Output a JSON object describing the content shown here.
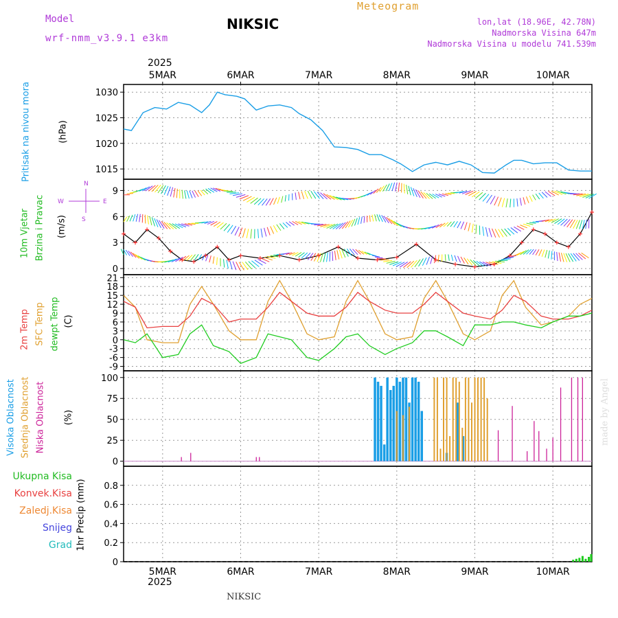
{
  "header": {
    "model_label": "Model",
    "model_name": "wrf-nmm_v3.9.1 e3km",
    "station": "NIKSIC",
    "meteogram": "Meteogram",
    "lonlat": "lon,lat (18.96E, 42.78N)",
    "altitude": "Nadmorska Visina 647m",
    "model_altitude": "Nadmorska Visina u modelu 741.539m",
    "footer_station": "NIKSIC",
    "credit": "made by Angel"
  },
  "colors": {
    "pressure": "#1a9ee6",
    "temp2m": "#e84040",
    "sfc": "#e0a030",
    "dewpt": "#1fcc1f",
    "high_cloud": "#1a9ee6",
    "mid_cloud": "#e0a030",
    "low_cloud": "#cc2299",
    "wind_black": "#000000",
    "grid": "#999999",
    "purple_text": "#b03ad8",
    "green_label": "#22bb22",
    "red_label": "#e84040",
    "orange_label": "#ee8833",
    "blue_label": "#4444dd",
    "cyan_label": "#22bbbb"
  },
  "axis": {
    "year": "2025",
    "dates": [
      "5MAR",
      "6MAR",
      "7MAR",
      "8MAR",
      "9MAR",
      "10MAR"
    ],
    "day_units": [
      0.5,
      1.5,
      2.5,
      3.5,
      4.5,
      5.5
    ],
    "range_days": [
      0,
      6
    ]
  },
  "chart_data": [
    {
      "type": "line",
      "id": "pressure",
      "ylabel_line1": "Pritisak na nivou mora",
      "unit": "(hPa)",
      "yticks": [
        1015,
        1020,
        1025,
        1030
      ],
      "ylim": [
        1013,
        1031.5
      ],
      "series": [
        {
          "name": "MSLP",
          "x": [
            0,
            0.1,
            0.25,
            0.4,
            0.55,
            0.7,
            0.85,
            1.0,
            1.1,
            1.2,
            1.3,
            1.45,
            1.55,
            1.7,
            1.85,
            2.0,
            2.15,
            2.25,
            2.4,
            2.55,
            2.7,
            2.85,
            3.0,
            3.15,
            3.3,
            3.45,
            3.55,
            3.7,
            3.85,
            4.0,
            4.15,
            4.3,
            4.45,
            4.6,
            4.75,
            4.9,
            5.0,
            5.1,
            5.25,
            5.4,
            5.55,
            5.7,
            5.85,
            6.0
          ],
          "values": [
            1022.8,
            1022.5,
            1026,
            1027,
            1026.7,
            1028,
            1027.5,
            1026,
            1027.5,
            1030,
            1029.5,
            1029.2,
            1028.7,
            1026.5,
            1027.3,
            1027.5,
            1027,
            1025.8,
            1024.6,
            1022.5,
            1019.3,
            1019.2,
            1018.8,
            1017.8,
            1017.8,
            1016.8,
            1016,
            1014.5,
            1015.8,
            1016.3,
            1015.8,
            1016.5,
            1015.8,
            1014.3,
            1014.2,
            1015.8,
            1016.7,
            1016.7,
            1016,
            1016.2,
            1016.2,
            1014.8,
            1014.6,
            1014.6
          ]
        }
      ]
    },
    {
      "type": "line",
      "id": "wind",
      "ylabel_line1": "10m Vjetar",
      "ylabel_line2": "Brzina i Pravac",
      "unit": "(m/s)",
      "compass_n": "N",
      "compass_s": "S",
      "compass_w": "W",
      "compass_e": "E",
      "yticks": [
        0,
        3,
        6,
        9
      ],
      "ylim": [
        -0.7,
        10.3
      ],
      "series": [
        {
          "name": "speed",
          "x": [
            0,
            0.15,
            0.3,
            0.45,
            0.6,
            0.75,
            0.9,
            1.05,
            1.2,
            1.35,
            1.5,
            1.75,
            2.0,
            2.25,
            2.5,
            2.75,
            3.0,
            3.25,
            3.5,
            3.75,
            4.0,
            4.25,
            4.5,
            4.75,
            4.95,
            5.1,
            5.25,
            5.4,
            5.55,
            5.7,
            5.85,
            6.0
          ],
          "values": [
            4,
            3,
            4.5,
            3.5,
            2,
            1,
            0.8,
            1.5,
            2.5,
            1,
            1.5,
            1.2,
            1.5,
            1,
            1.5,
            2.5,
            1.2,
            1,
            1.3,
            2.8,
            1,
            0.5,
            0.2,
            0.5,
            1.5,
            3,
            4.5,
            4,
            3,
            2.5,
            4,
            6.5
          ]
        },
        {
          "name": "sample",
          "x": [
            0.2,
            0.6,
            1.0
          ],
          "values": [
            3.6,
            2.5,
            1.5
          ]
        }
      ]
    },
    {
      "type": "line",
      "id": "temperature",
      "ylabel_line1": "2m Temp",
      "ylabel_line2": "SFC Temp",
      "ylabel_line3": "dewpt Temp",
      "unit": "(C)",
      "yticks": [
        -9,
        -6,
        -3,
        0,
        3,
        6,
        9,
        12,
        15,
        18,
        21
      ],
      "ylim": [
        -10.5,
        22
      ],
      "series": [
        {
          "name": "2m Temp",
          "x": [
            0,
            0.15,
            0.3,
            0.5,
            0.7,
            0.85,
            1.0,
            1.15,
            1.35,
            1.5,
            1.7,
            1.85,
            2.0,
            2.15,
            2.35,
            2.5,
            2.7,
            2.85,
            3.0,
            3.15,
            3.35,
            3.5,
            3.7,
            3.85,
            4.0,
            4.15,
            4.35,
            4.5,
            4.7,
            4.85,
            5.0,
            5.15,
            5.35,
            5.5,
            5.7,
            5.85,
            6.0
          ],
          "values": [
            13,
            11,
            4,
            4.5,
            4.5,
            8,
            14,
            12,
            6,
            7,
            7,
            11,
            16,
            13,
            9,
            8,
            8,
            11,
            16,
            13,
            10,
            9,
            9,
            12,
            16,
            13,
            9,
            8,
            7,
            10,
            15,
            13,
            8,
            7,
            7,
            8,
            10
          ]
        },
        {
          "name": "SFC Temp",
          "x": [
            0,
            0.15,
            0.3,
            0.5,
            0.7,
            0.85,
            1.0,
            1.15,
            1.35,
            1.5,
            1.7,
            1.85,
            2.0,
            2.15,
            2.35,
            2.5,
            2.7,
            2.85,
            3.0,
            3.15,
            3.35,
            3.5,
            3.7,
            3.85,
            4.0,
            4.15,
            4.35,
            4.5,
            4.7,
            4.85,
            5.0,
            5.15,
            5.35,
            5.5,
            5.7,
            5.85,
            6.0
          ],
          "values": [
            15,
            11,
            0,
            -1,
            -1,
            12,
            18,
            12,
            3,
            0,
            0,
            13,
            20,
            13,
            2,
            0,
            1,
            13,
            20,
            13,
            2,
            0,
            1,
            14,
            20,
            13,
            2,
            0,
            3,
            15,
            20,
            11,
            5,
            6,
            8,
            12,
            14
          ]
        },
        {
          "name": "dewpt Temp",
          "x": [
            0,
            0.15,
            0.3,
            0.5,
            0.7,
            0.85,
            1.0,
            1.15,
            1.35,
            1.5,
            1.7,
            1.85,
            2.0,
            2.15,
            2.35,
            2.5,
            2.7,
            2.85,
            3.0,
            3.15,
            3.35,
            3.5,
            3.7,
            3.85,
            4.0,
            4.15,
            4.35,
            4.5,
            4.7,
            4.85,
            5.0,
            5.15,
            5.35,
            5.5,
            5.7,
            5.85,
            6.0
          ],
          "values": [
            0,
            -1,
            2,
            -6,
            -5,
            2,
            5,
            -2,
            -4,
            -8,
            -6,
            2,
            1,
            0,
            -6,
            -7,
            -3,
            1,
            2,
            -2,
            -5,
            -3,
            -1,
            3,
            3,
            1,
            -2,
            5,
            5,
            6,
            6,
            5,
            4,
            6,
            8,
            8,
            9
          ]
        }
      ]
    },
    {
      "type": "bar",
      "id": "clouds",
      "ylabel_line1": "Visoka Oblacnost",
      "ylabel_line2": "Srednja Oblacnost",
      "ylabel_line3": "Niska Oblacnost",
      "unit": "(%)",
      "yticks": [
        0,
        25,
        50,
        75,
        100
      ],
      "ylim": [
        -6,
        108
      ],
      "series": [
        {
          "name": "Visoka Oblacnost",
          "x": [
            3.22,
            3.26,
            3.3,
            3.34,
            3.38,
            3.42,
            3.46,
            3.5,
            3.54,
            3.58,
            3.62,
            3.66,
            3.7,
            3.74,
            3.78,
            3.82,
            4.14,
            4.28,
            4.35
          ],
          "values": [
            100,
            95,
            90,
            20,
            100,
            85,
            90,
            100,
            95,
            100,
            100,
            70,
            100,
            100,
            95,
            60,
            10,
            70,
            30
          ]
        },
        {
          "name": "Srednja Oblacnost",
          "x": [
            3.5,
            3.58,
            3.66,
            3.98,
            4.02,
            4.06,
            4.1,
            4.14,
            4.18,
            4.22,
            4.26,
            4.3,
            4.34,
            4.38,
            4.42,
            4.46,
            4.5,
            4.54,
            4.58,
            4.62,
            4.66
          ],
          "values": [
            60,
            55,
            65,
            100,
            100,
            15,
            100,
            100,
            30,
            100,
            100,
            95,
            40,
            100,
            100,
            70,
            100,
            100,
            100,
            100,
            75
          ]
        },
        {
          "name": "Niska Oblacnost",
          "x": [
            0.74,
            0.86,
            1.7,
            1.74,
            4.8,
            4.98,
            5.17,
            5.26,
            5.32,
            5.42,
            5.5,
            5.6,
            5.74,
            5.82,
            5.88
          ],
          "values": [
            5,
            10,
            5,
            5,
            37,
            66,
            12,
            48,
            36,
            15,
            28,
            88,
            100,
            100,
            100
          ]
        }
      ]
    },
    {
      "type": "bar",
      "id": "precip",
      "legend": [
        "Ukupna Kisa",
        "Konvek.Kisa",
        "Zaledj.Kisa",
        "Snijeg",
        "Grad"
      ],
      "unit": "1hr Precip (mm)",
      "yticks": [
        0,
        0.2,
        0.4,
        0.6,
        0.8
      ],
      "ylim": [
        0,
        1.0
      ],
      "series": [
        {
          "name": "Ukupna Kisa",
          "x": [
            5.76,
            5.8,
            5.84,
            5.88,
            5.92,
            5.96,
            5.99
          ],
          "values": [
            0.02,
            0.03,
            0.04,
            0.06,
            0.03,
            0.05,
            0.08
          ]
        }
      ]
    }
  ]
}
